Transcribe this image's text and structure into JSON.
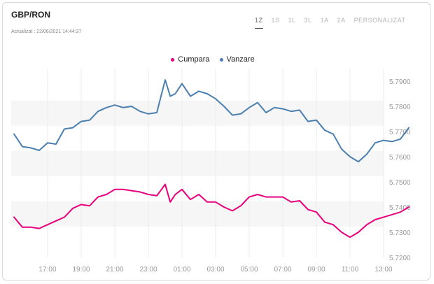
{
  "header": {
    "title": "GBP/RON",
    "updated": "Actualizat : 22/06/2021 14:44:37"
  },
  "tabs": [
    {
      "label": "1Z",
      "active": true
    },
    {
      "label": "1S",
      "active": false
    },
    {
      "label": "1L",
      "active": false
    },
    {
      "label": "3L",
      "active": false
    },
    {
      "label": "1A",
      "active": false
    },
    {
      "label": "2A",
      "active": false
    },
    {
      "label": "PERSONALIZAT",
      "active": false
    }
  ],
  "legend": [
    {
      "label": "Cumpara",
      "color": "#e6007e"
    },
    {
      "label": "Vanzare",
      "color": "#4a7fb0"
    }
  ],
  "chart_data": {
    "type": "line",
    "x_ticks": [
      "17:00",
      "19:00",
      "21:00",
      "23:00",
      "01:00",
      "03:00",
      "05:00",
      "07:00",
      "09:00",
      "11:00",
      "13:00"
    ],
    "y_ticks": [
      "5.7900",
      "5.7800",
      "5.7700",
      "5.7600",
      "5.7500",
      "5.7400",
      "5.7300",
      "5.7200"
    ],
    "ylim": [
      5.72,
      5.795
    ],
    "grid": "vertical",
    "legend_position": "top-center",
    "series": [
      {
        "name": "Vanzare",
        "color": "#4a7fb0",
        "x": [
          15.0,
          15.5,
          16.0,
          16.5,
          17.0,
          17.5,
          18.0,
          18.5,
          19.0,
          19.5,
          20.0,
          20.5,
          21.0,
          21.5,
          22.0,
          22.5,
          23.0,
          23.5,
          24.0,
          24.3,
          24.6,
          25.0,
          25.5,
          26.0,
          26.5,
          27.0,
          27.5,
          28.0,
          28.5,
          29.0,
          29.5,
          30.0,
          30.5,
          31.0,
          31.5,
          32.0,
          32.5,
          33.0,
          33.5,
          34.0,
          34.5,
          35.0,
          35.5,
          36.0,
          36.5,
          37.0,
          37.5,
          38.0,
          38.5
        ],
        "values": [
          5.769,
          5.764,
          5.7635,
          5.7625,
          5.7655,
          5.765,
          5.771,
          5.7715,
          5.774,
          5.7745,
          5.778,
          5.7795,
          5.7805,
          5.7795,
          5.78,
          5.778,
          5.777,
          5.7775,
          5.7905,
          5.784,
          5.785,
          5.789,
          5.784,
          5.786,
          5.785,
          5.783,
          5.78,
          5.7765,
          5.777,
          5.7795,
          5.7815,
          5.7775,
          5.7795,
          5.779,
          5.778,
          5.7785,
          5.774,
          5.7745,
          5.7705,
          5.769,
          5.763,
          5.76,
          5.758,
          5.761,
          5.7655,
          5.7665,
          5.766,
          5.767,
          5.7715
        ]
      },
      {
        "name": "Cumpara",
        "color": "#e6007e",
        "x": [
          15.0,
          15.5,
          16.0,
          16.5,
          17.0,
          17.5,
          18.0,
          18.5,
          19.0,
          19.5,
          20.0,
          20.5,
          21.0,
          21.5,
          22.0,
          22.5,
          23.0,
          23.5,
          24.0,
          24.3,
          24.6,
          25.0,
          25.5,
          26.0,
          26.5,
          27.0,
          27.5,
          28.0,
          28.5,
          29.0,
          29.5,
          30.0,
          30.5,
          31.0,
          31.5,
          32.0,
          32.5,
          33.0,
          33.5,
          34.0,
          34.5,
          35.0,
          35.5,
          36.0,
          36.5,
          37.0,
          37.5,
          38.0,
          38.5
        ],
        "values": [
          5.736,
          5.732,
          5.732,
          5.7315,
          5.733,
          5.7345,
          5.736,
          5.7395,
          5.741,
          5.7405,
          5.744,
          5.745,
          5.747,
          5.747,
          5.7465,
          5.746,
          5.745,
          5.7445,
          5.749,
          5.742,
          5.745,
          5.747,
          5.743,
          5.745,
          5.742,
          5.742,
          5.74,
          5.7385,
          5.7405,
          5.744,
          5.745,
          5.744,
          5.744,
          5.744,
          5.742,
          5.7425,
          5.739,
          5.738,
          5.734,
          5.733,
          5.73,
          5.728,
          5.73,
          5.733,
          5.735,
          5.736,
          5.737,
          5.738,
          5.74
        ]
      }
    ]
  }
}
